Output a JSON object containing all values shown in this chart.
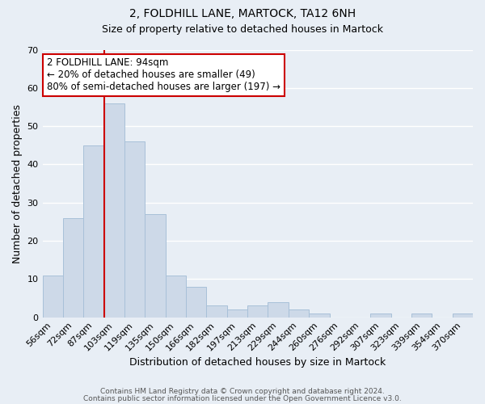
{
  "title": "2, FOLDHILL LANE, MARTOCK, TA12 6NH",
  "subtitle": "Size of property relative to detached houses in Martock",
  "xlabel": "Distribution of detached houses by size in Martock",
  "ylabel": "Number of detached properties",
  "bar_color": "#cdd9e8",
  "bar_edgecolor": "#a8c0d8",
  "background_color": "#e8eef5",
  "plot_bg_color": "#e8eef5",
  "grid_color": "#ffffff",
  "bins": [
    "56sqm",
    "72sqm",
    "87sqm",
    "103sqm",
    "119sqm",
    "135sqm",
    "150sqm",
    "166sqm",
    "182sqm",
    "197sqm",
    "213sqm",
    "229sqm",
    "244sqm",
    "260sqm",
    "276sqm",
    "292sqm",
    "307sqm",
    "323sqm",
    "339sqm",
    "354sqm",
    "370sqm"
  ],
  "values": [
    11,
    26,
    45,
    56,
    46,
    27,
    11,
    8,
    3,
    2,
    3,
    4,
    2,
    1,
    0,
    0,
    1,
    0,
    1,
    0,
    1
  ],
  "ylim": [
    0,
    70
  ],
  "yticks": [
    0,
    10,
    20,
    30,
    40,
    50,
    60,
    70
  ],
  "annotation_title": "2 FOLDHILL LANE: 94sqm",
  "annotation_line1": "← 20% of detached houses are smaller (49)",
  "annotation_line2": "80% of semi-detached houses are larger (197) →",
  "annotation_box_color": "#ffffff",
  "annotation_box_edgecolor": "#cc0000",
  "redline_color": "#cc0000",
  "footer_line1": "Contains HM Land Registry data © Crown copyright and database right 2024.",
  "footer_line2": "Contains public sector information licensed under the Open Government Licence v3.0.",
  "title_fontsize": 10,
  "subtitle_fontsize": 9,
  "xlabel_fontsize": 9,
  "ylabel_fontsize": 9,
  "tick_fontsize": 8,
  "footer_fontsize": 6.5
}
